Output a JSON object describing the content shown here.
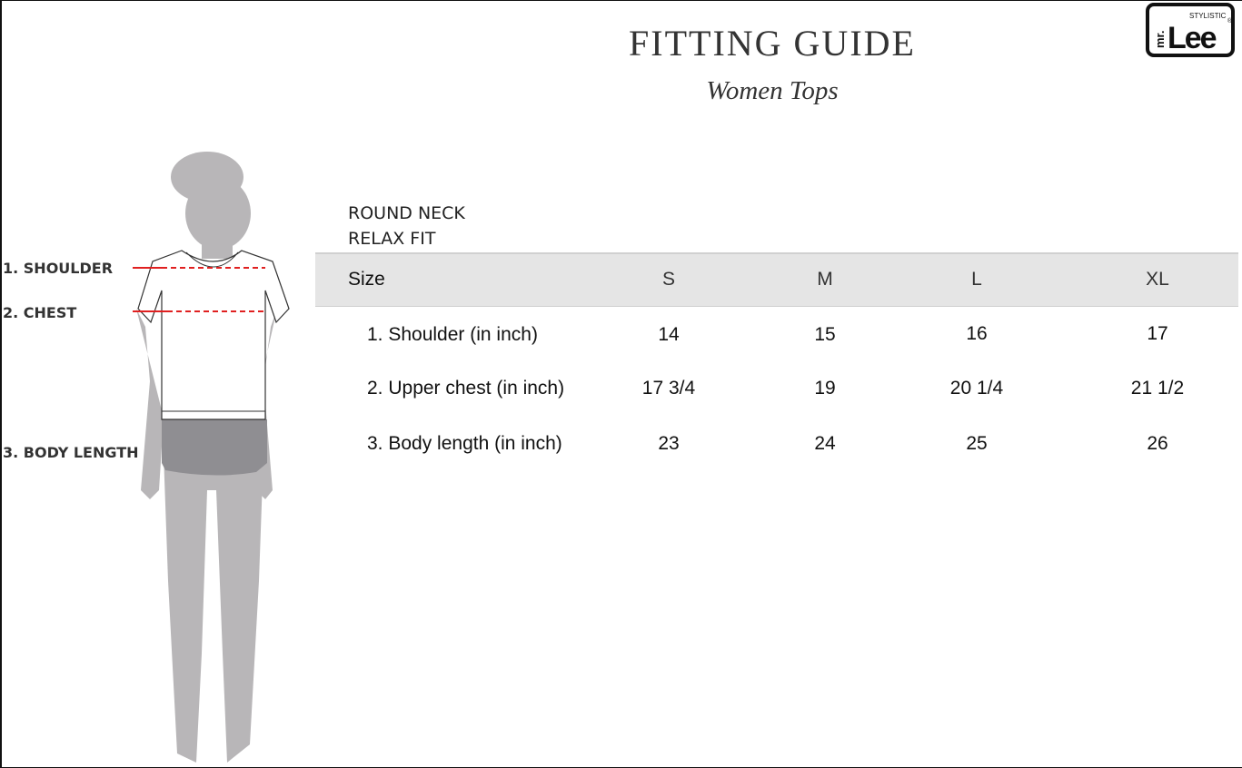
{
  "header": {
    "title": "FITTING GUIDE",
    "subtitle": "Women Tops"
  },
  "logo": {
    "text": "mr.Lee",
    "tagline": "STYLISTIC",
    "mark": "®"
  },
  "style": {
    "line1": "ROUND NECK",
    "line2": "RELAX FIT"
  },
  "figure": {
    "labels": [
      "1. SHOULDER",
      "2. CHEST",
      "3. BODY LENGTH"
    ],
    "measure_line_color": "#e02020"
  },
  "table": {
    "headers": [
      "Size",
      "S",
      "M",
      "L",
      "XL"
    ],
    "rows": [
      {
        "label": "1. Shoulder (in inch)",
        "values": [
          "14",
          "15",
          "16",
          "17"
        ]
      },
      {
        "label": "2. Upper chest (in inch)",
        "values": [
          "17 3/4",
          "19",
          "20 1/4",
          "21 1/2"
        ]
      },
      {
        "label": "3. Body length (in inch)",
        "values": [
          "23",
          "24",
          "25",
          "26"
        ]
      }
    ]
  }
}
